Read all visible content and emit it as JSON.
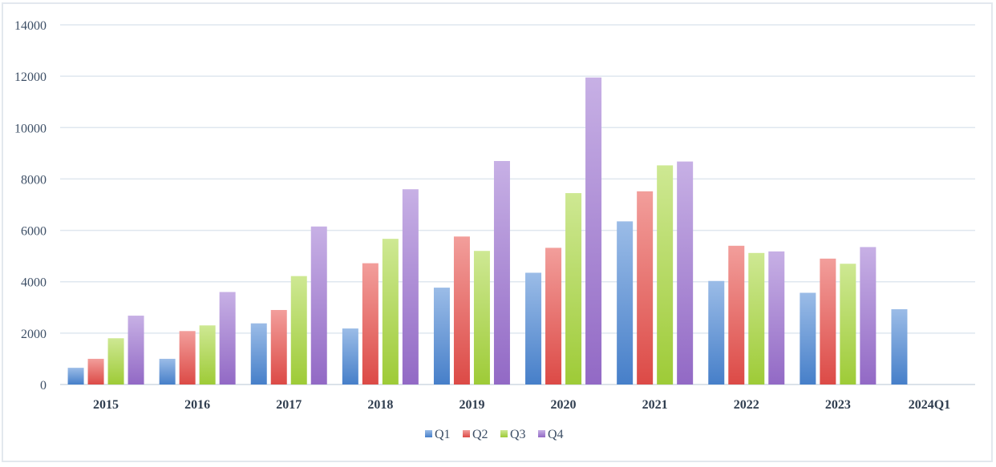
{
  "chart_data": {
    "type": "bar",
    "title": "",
    "xlabel": "",
    "ylabel": "",
    "ylim": [
      0,
      14000
    ],
    "yticks": [
      0,
      2000,
      4000,
      6000,
      8000,
      10000,
      12000,
      14000
    ],
    "grid": true,
    "legend_position": "bottom",
    "categories": [
      "2015",
      "2016",
      "2017",
      "2018",
      "2019",
      "2020",
      "2021",
      "2022",
      "2023",
      "2024Q1"
    ],
    "series": [
      {
        "name": "Q1",
        "color": "#4a86d4",
        "values": [
          650,
          1000,
          2380,
          2180,
          3770,
          4350,
          6350,
          4030,
          3570,
          2930
        ]
      },
      {
        "name": "Q2",
        "color": "#e84e4a",
        "values": [
          1000,
          2080,
          2900,
          4720,
          5760,
          5320,
          7520,
          5400,
          4900,
          null
        ]
      },
      {
        "name": "Q3",
        "color": "#a6d63a",
        "values": [
          1800,
          2300,
          4220,
          5670,
          5200,
          7450,
          8530,
          5120,
          4700,
          null
        ]
      },
      {
        "name": "Q4",
        "color": "#9a6fcf",
        "values": [
          2680,
          3600,
          6150,
          7600,
          8700,
          11950,
          8680,
          5180,
          5350,
          null
        ]
      }
    ]
  }
}
